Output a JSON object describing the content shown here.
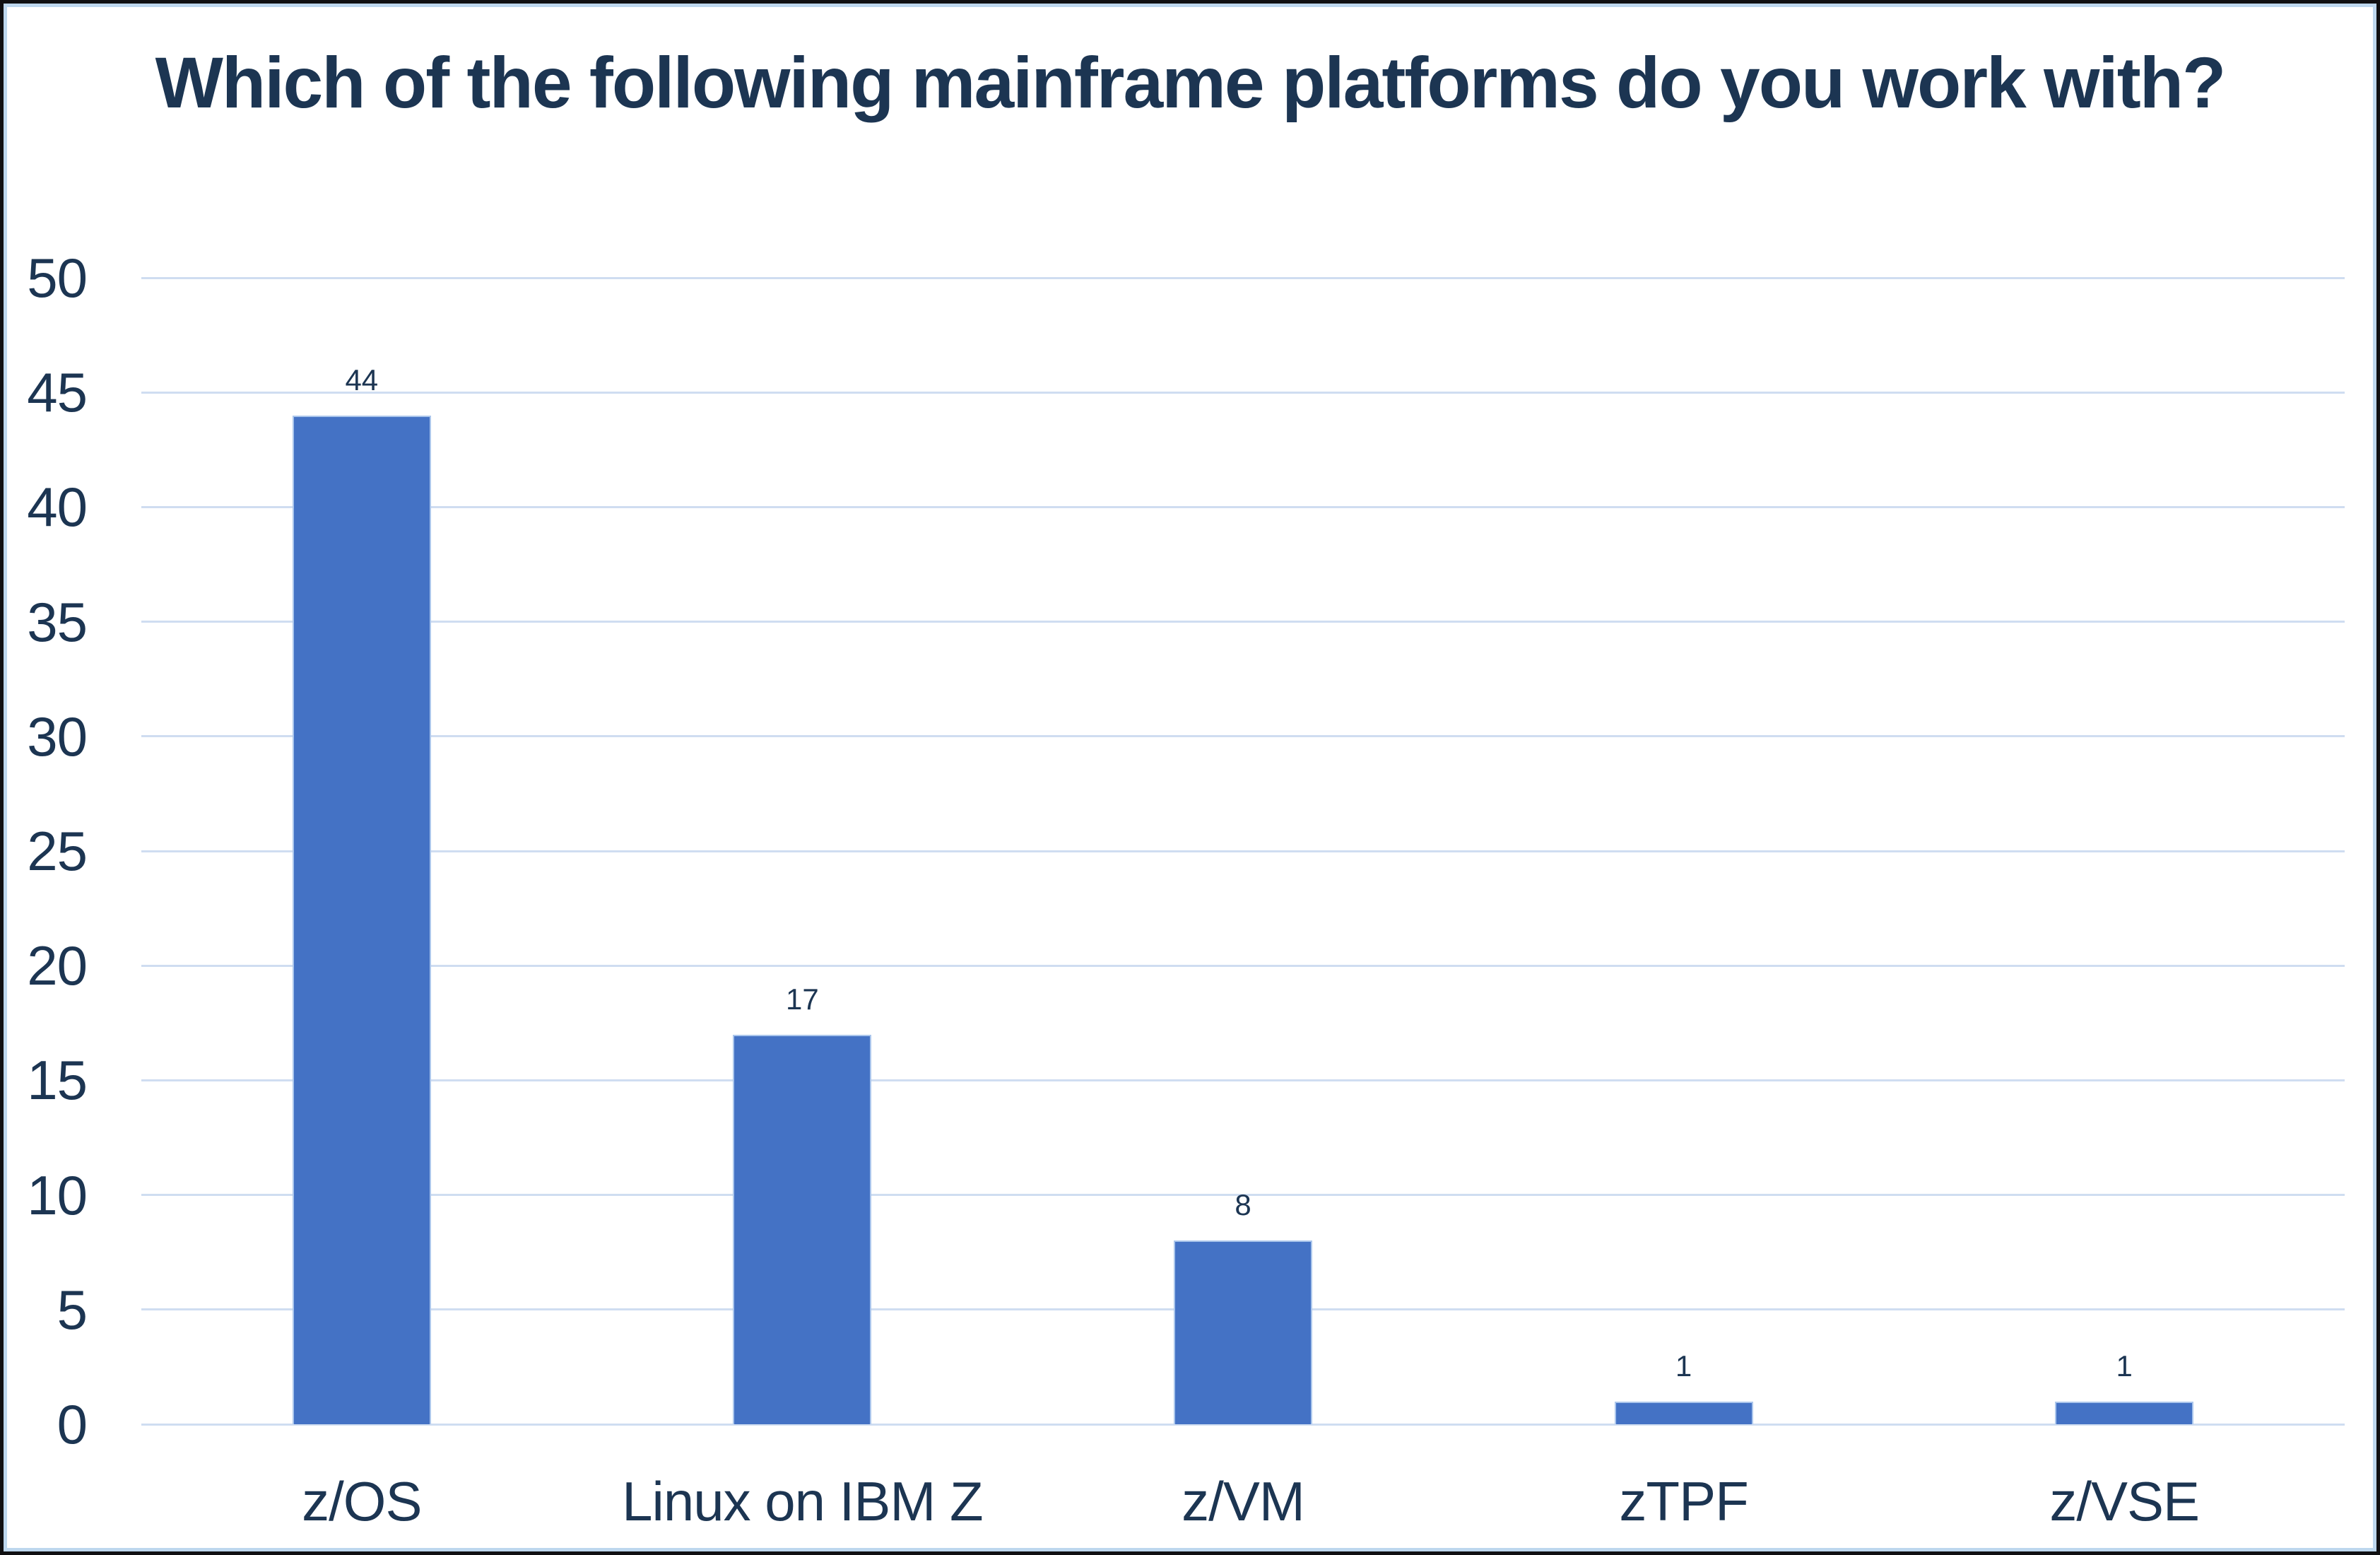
{
  "chart_data": {
    "type": "bar",
    "title": "Which of the following mainframe platforms do you work with?",
    "categories": [
      "z/OS",
      "Linux on IBM Z",
      "z/VM",
      "zTPF",
      "z/VSE"
    ],
    "values": [
      44,
      17,
      8,
      1,
      1
    ],
    "ylim": [
      0,
      50
    ],
    "yticks": [
      0,
      5,
      10,
      15,
      20,
      25,
      30,
      35,
      40,
      45,
      50
    ],
    "xlabel": "",
    "ylabel": "",
    "grid": true,
    "legend": false,
    "data_labels_shown": true,
    "colors": {
      "bar_fill": "#4472c5",
      "bar_border": "#abc6ec",
      "gridline": "#cfddf1",
      "text": "#1c3552",
      "background": "#ffffff",
      "inner_frame_border": "#bdd7ee",
      "outer_border": "#101012"
    }
  }
}
